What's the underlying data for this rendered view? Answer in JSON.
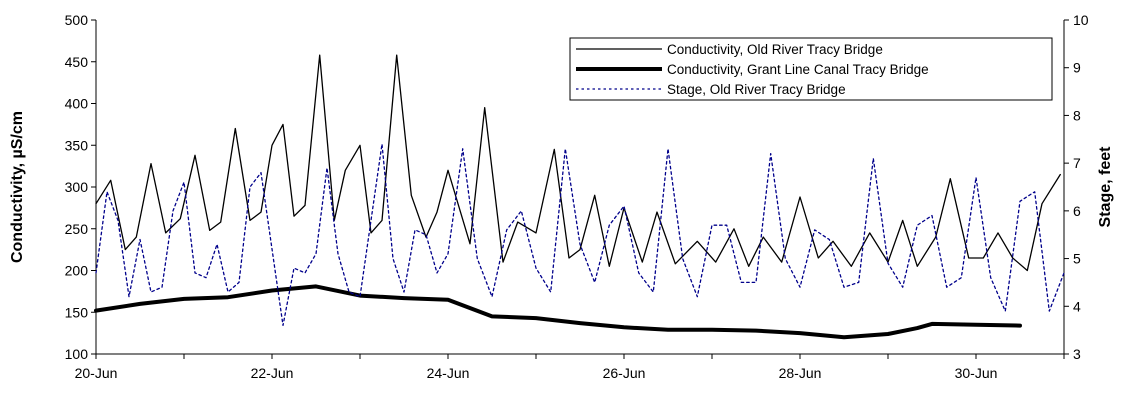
{
  "chart_data": {
    "type": "line",
    "title": "",
    "xlabel": "",
    "ylabel": "Conductivity,  µS/cm",
    "y2label": "Stage, feet",
    "xlim": [
      "2006-06-20",
      "2006-07-01"
    ],
    "ylim": [
      100,
      500
    ],
    "y2lim": [
      3,
      10
    ],
    "grid": false,
    "legend_position": "top-right",
    "x_tick_labels": [
      "20-Jun",
      "22-Jun",
      "24-Jun",
      "26-Jun",
      "28-Jun",
      "30-Jun"
    ],
    "y_tick_labels": [
      "100",
      "150",
      "200",
      "250",
      "300",
      "350",
      "400",
      "450",
      "500"
    ],
    "y2_tick_labels": [
      "3",
      "4",
      "5",
      "6",
      "7",
      "8",
      "9",
      "10"
    ],
    "series": [
      {
        "name": "Conductivity, Old River Tracy Bridge",
        "axis": "left",
        "color": "#000000",
        "style": "solid-thin",
        "x": [
          "2006-06-20T00:00",
          "2006-06-20T04:00",
          "2006-06-20T08:00",
          "2006-06-20T11:00",
          "2006-06-20T15:00",
          "2006-06-20T19:00",
          "2006-06-20T23:00",
          "2006-06-21T03:00",
          "2006-06-21T07:00",
          "2006-06-21T10:00",
          "2006-06-21T14:00",
          "2006-06-21T18:00",
          "2006-06-21T21:00",
          "2006-06-22T00:00",
          "2006-06-22T03:00",
          "2006-06-22T06:00",
          "2006-06-22T09:00",
          "2006-06-22T13:00",
          "2006-06-22T17:00",
          "2006-06-22T20:00",
          "2006-06-23T00:00",
          "2006-06-23T03:00",
          "2006-06-23T06:00",
          "2006-06-23T10:00",
          "2006-06-23T14:00",
          "2006-06-23T18:00",
          "2006-06-23T21:00",
          "2006-06-24T00:00",
          "2006-06-24T06:00",
          "2006-06-24T10:00",
          "2006-06-24T15:00",
          "2006-06-24T19:00",
          "2006-06-25T00:00",
          "2006-06-25T05:00",
          "2006-06-25T09:00",
          "2006-06-25T12:00",
          "2006-06-25T16:00",
          "2006-06-25T20:00",
          "2006-06-26T00:00",
          "2006-06-26T05:00",
          "2006-06-26T09:00",
          "2006-06-26T14:00",
          "2006-06-26T20:00",
          "2006-06-27T01:00",
          "2006-06-27T06:00",
          "2006-06-27T10:00",
          "2006-06-27T14:00",
          "2006-06-27T19:00",
          "2006-06-28T00:00",
          "2006-06-28T05:00",
          "2006-06-28T09:00",
          "2006-06-28T14:00",
          "2006-06-28T19:00",
          "2006-06-29T00:00",
          "2006-06-29T04:00",
          "2006-06-29T08:00",
          "2006-06-29T13:00",
          "2006-06-29T17:00",
          "2006-06-29T22:00",
          "2006-06-30T02:00",
          "2006-06-30T06:00",
          "2006-06-30T10:00",
          "2006-06-30T14:00",
          "2006-06-30T18:00",
          "2006-06-30T23:00"
        ],
        "values": [
          280,
          308,
          225,
          240,
          328,
          245,
          262,
          338,
          248,
          258,
          370,
          260,
          270,
          350,
          375,
          265,
          278,
          458,
          260,
          320,
          350,
          245,
          260,
          458,
          290,
          240,
          270,
          320,
          232,
          395,
          210,
          258,
          245,
          345,
          215,
          225,
          290,
          205,
          275,
          210,
          270,
          208,
          235,
          210,
          250,
          205,
          240,
          210,
          288,
          215,
          235,
          205,
          245,
          210,
          260,
          205,
          240,
          310,
          215,
          215,
          245,
          215,
          200,
          280,
          315
        ]
      },
      {
        "name": "Conductivity, Grant Line Canal Tracy Bridge",
        "axis": "left",
        "color": "#000000",
        "style": "solid-thick",
        "x": [
          "2006-06-20T00:00",
          "2006-06-20T12:00",
          "2006-06-21T00:00",
          "2006-06-21T12:00",
          "2006-06-22T00:00",
          "2006-06-22T12:00",
          "2006-06-23T00:00",
          "2006-06-23T12:00",
          "2006-06-24T00:00",
          "2006-06-24T12:00",
          "2006-06-25T00:00",
          "2006-06-25T12:00",
          "2006-06-26T00:00",
          "2006-06-26T12:00",
          "2006-06-27T00:00",
          "2006-06-27T12:00",
          "2006-06-28T00:00",
          "2006-06-28T12:00",
          "2006-06-29T00:00",
          "2006-06-29T08:00",
          "2006-06-29T12:00",
          "2006-06-30T00:00",
          "2006-06-30T12:00"
        ],
        "values": [
          152,
          160,
          166,
          168,
          176,
          181,
          170,
          167,
          165,
          145,
          143,
          137,
          132,
          129,
          129,
          128,
          125,
          120,
          124,
          131,
          136,
          135,
          134
        ]
      },
      {
        "name": "Stage, Old River Tracy Bridge",
        "axis": "right",
        "color": "#00008B",
        "style": "dotted",
        "x": [
          "2006-06-20T00:00",
          "2006-06-20T03:00",
          "2006-06-20T06:00",
          "2006-06-20T09:00",
          "2006-06-20T12:00",
          "2006-06-20T15:00",
          "2006-06-20T18:00",
          "2006-06-20T21:00",
          "2006-06-21T00:00",
          "2006-06-21T03:00",
          "2006-06-21T06:00",
          "2006-06-21T09:00",
          "2006-06-21T12:00",
          "2006-06-21T15:00",
          "2006-06-21T18:00",
          "2006-06-21T21:00",
          "2006-06-22T00:00",
          "2006-06-22T03:00",
          "2006-06-22T06:00",
          "2006-06-22T09:00",
          "2006-06-22T12:00",
          "2006-06-22T15:00",
          "2006-06-22T18:00",
          "2006-06-22T21:00",
          "2006-06-23T00:00",
          "2006-06-23T03:00",
          "2006-06-23T06:00",
          "2006-06-23T09:00",
          "2006-06-23T12:00",
          "2006-06-23T15:00",
          "2006-06-23T18:00",
          "2006-06-23T21:00",
          "2006-06-24T00:00",
          "2006-06-24T04:00",
          "2006-06-24T08:00",
          "2006-06-24T12:00",
          "2006-06-24T16:00",
          "2006-06-24T20:00",
          "2006-06-25T00:00",
          "2006-06-25T04:00",
          "2006-06-25T08:00",
          "2006-06-25T12:00",
          "2006-06-25T16:00",
          "2006-06-25T20:00",
          "2006-06-26T00:00",
          "2006-06-26T04:00",
          "2006-06-26T08:00",
          "2006-06-26T12:00",
          "2006-06-26T16:00",
          "2006-06-26T20:00",
          "2006-06-27T00:00",
          "2006-06-27T04:00",
          "2006-06-27T08:00",
          "2006-06-27T12:00",
          "2006-06-27T16:00",
          "2006-06-27T20:00",
          "2006-06-28T00:00",
          "2006-06-28T04:00",
          "2006-06-28T08:00",
          "2006-06-28T12:00",
          "2006-06-28T16:00",
          "2006-06-28T20:00",
          "2006-06-29T00:00",
          "2006-06-29T04:00",
          "2006-06-29T08:00",
          "2006-06-29T12:00",
          "2006-06-29T16:00",
          "2006-06-29T20:00",
          "2006-06-30T00:00",
          "2006-06-30T04:00",
          "2006-06-30T08:00",
          "2006-06-30T12:00",
          "2006-06-30T16:00",
          "2006-06-30T20:00",
          "2006-07-01T00:00"
        ],
        "values": [
          4.7,
          6.4,
          5.8,
          4.2,
          5.4,
          4.3,
          4.4,
          6.0,
          6.6,
          4.7,
          4.6,
          5.3,
          4.3,
          4.5,
          6.5,
          6.8,
          5.2,
          3.6,
          4.8,
          4.7,
          5.1,
          6.9,
          5.1,
          4.3,
          4.2,
          5.8,
          7.4,
          5.0,
          4.3,
          5.6,
          5.5,
          4.7,
          5.1,
          7.3,
          5.0,
          4.2,
          5.6,
          6.0,
          4.8,
          4.3,
          7.3,
          5.3,
          4.5,
          5.7,
          6.1,
          4.7,
          4.3,
          7.3,
          5.0,
          4.2,
          5.7,
          5.7,
          4.5,
          4.5,
          7.2,
          5.0,
          4.4,
          5.6,
          5.4,
          4.4,
          4.5,
          7.1,
          4.9,
          4.4,
          5.7,
          5.9,
          4.4,
          4.6,
          6.7,
          4.6,
          3.9,
          6.2,
          6.4,
          3.9,
          4.7
        ]
      }
    ]
  }
}
